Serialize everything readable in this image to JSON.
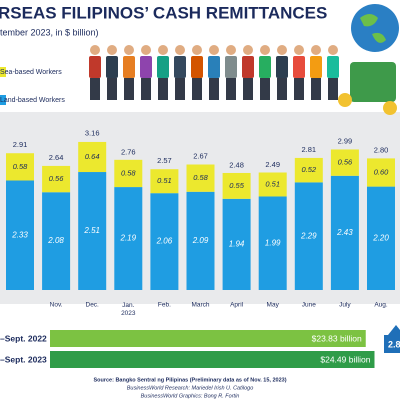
{
  "chart_data": {
    "type": "stacked-bar",
    "title": "RSEAS FILIPINOS’ CASH REMITTANCES",
    "subtitle": "tember 2023, in $ billion)",
    "categories": [
      null,
      "Nov.",
      "Dec.",
      "Jan.\n2023",
      "Feb.",
      "March",
      "April",
      "May",
      "June",
      "July",
      "Aug."
    ],
    "series": [
      {
        "name": "Land-based Workers",
        "color": "#1f9de2",
        "values": [
          2.33,
          2.08,
          2.51,
          2.19,
          2.06,
          2.09,
          1.94,
          1.99,
          2.29,
          2.43,
          2.2
        ],
        "value_labels": [
          "2.33",
          "2.08",
          "2.51",
          "2.19",
          "2.06",
          "2.09",
          "1.94",
          "1.99",
          "2.29",
          "2.43",
          "2.20"
        ]
      },
      {
        "name": "Sea-based Workers",
        "color": "#ece82e",
        "values": [
          0.58,
          0.56,
          0.64,
          0.58,
          0.51,
          0.58,
          0.55,
          0.51,
          0.52,
          0.56,
          0.6
        ],
        "value_labels": [
          "0.58",
          "0.56",
          "0.64",
          "0.58",
          "0.51",
          "0.58",
          "0.55",
          "0.51",
          "0.52",
          "0.56",
          "0.60"
        ]
      }
    ],
    "totals": {
      "values": [
        2.91,
        2.64,
        3.16,
        2.76,
        2.57,
        2.67,
        2.48,
        2.49,
        2.81,
        2.99,
        2.8
      ],
      "value_labels": [
        "2.91",
        "2.64",
        "3.16",
        "2.76",
        "2.57",
        "2.67",
        "2.48",
        "2.49",
        "2.81",
        "2.99",
        "2.80"
      ]
    },
    "cumulative": {
      "categories": [
        "–Sept. 2022",
        "–Sept. 2023"
      ],
      "colors": [
        "#7cc242",
        "#2f9c48"
      ],
      "values": [
        23.83,
        24.49
      ],
      "value_labels": [
        "$23.83 billion",
        "$24.49 billion"
      ],
      "growth_label": "2.8"
    },
    "source": "Source: Bangko Sentral ng Pilipinas (Preliminary data as of Nov. 15, 2023)",
    "research": "BusinessWorld Research: Mariedel Irish U. Catilogo",
    "graphics": "BusinessWorld Graphics: Bong R. Fortin"
  }
}
